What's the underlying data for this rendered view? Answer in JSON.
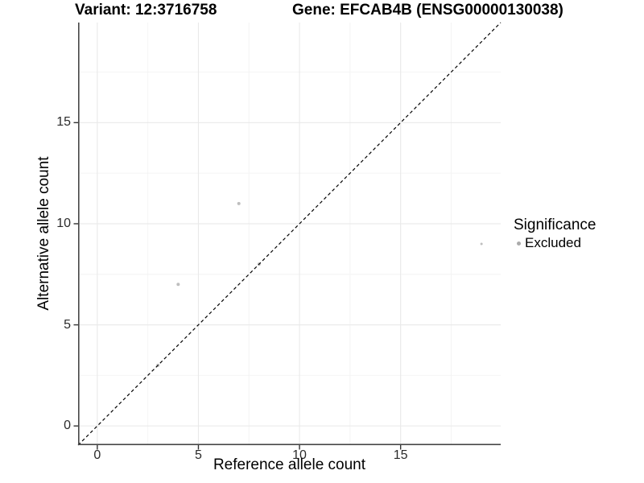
{
  "chart_data": {
    "type": "scatter",
    "titles": {
      "left": "Variant: 12:3716758",
      "right": "Gene: EFCAB4B (ENSG00000130038)"
    },
    "xlabel": "Reference allele count",
    "ylabel": "Alternative allele count",
    "xlim": [
      -0.95,
      19.95
    ],
    "ylim": [
      -0.95,
      19.95
    ],
    "x_ticks": [
      0,
      5,
      10,
      15
    ],
    "y_ticks": [
      0,
      5,
      10,
      15
    ],
    "minor_ticks": [
      2.5,
      7.5,
      12.5,
      17.5
    ],
    "grid": "major and minor gridlines on",
    "reference_line": {
      "slope": 1,
      "intercept": 0,
      "style": "dashed",
      "color": "#000000"
    },
    "series": [
      {
        "name": "Excluded",
        "color": "#bebebe",
        "points": [
          {
            "x": 3,
            "y": 3,
            "r": 2.0
          },
          {
            "x": 4,
            "y": 7,
            "r": 2.0
          },
          {
            "x": 7,
            "y": 11,
            "r": 2.0
          },
          {
            "x": 8,
            "y": 8,
            "r": 2.0
          },
          {
            "x": 19,
            "y": 9,
            "r": 1.5
          }
        ]
      }
    ],
    "legend": {
      "position": "right",
      "title": "Significance",
      "items": [
        {
          "label": "Excluded",
          "color": "#ababab"
        }
      ]
    }
  },
  "colors": {
    "background": "#ffffff",
    "axis_line": "#474747",
    "tick_mark": "#333333",
    "grid_major": "#e9e9e9",
    "grid_minor": "#f4f4f4",
    "point": "#bebebe",
    "text": "#000000"
  }
}
